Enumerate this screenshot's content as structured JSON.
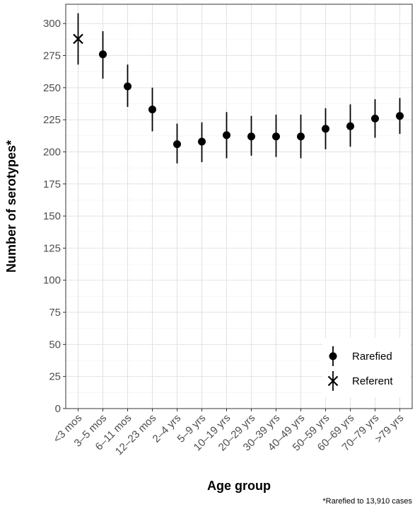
{
  "chart_data": {
    "type": "scatter",
    "title": "",
    "xlabel": "Age group",
    "ylabel": "Number of serotypes*",
    "ylim": [
      0,
      315
    ],
    "yticks": [
      0,
      25,
      50,
      75,
      100,
      125,
      150,
      175,
      200,
      225,
      250,
      275,
      300
    ],
    "categories": [
      "<3 mos",
      "3–5 mos",
      "6–11 mos",
      "12–23 mos",
      "2–4 yrs",
      "5–9 yrs",
      "10–19 yrs",
      "20–29 yrs",
      "30–39 yrs",
      "40–49 yrs",
      "50–59 yrs",
      "60–69 yrs",
      "70–79 yrs",
      ">79 yrs"
    ],
    "series": [
      {
        "name": "Rarefied",
        "marker": "circle",
        "values": [
          null,
          276,
          251,
          233,
          206,
          208,
          213,
          212,
          212,
          212,
          218,
          220,
          226,
          228
        ],
        "lower": [
          null,
          257,
          235,
          216,
          191,
          192,
          195,
          197,
          196,
          195,
          202,
          204,
          211,
          214
        ],
        "upper": [
          null,
          294,
          268,
          250,
          222,
          223,
          231,
          228,
          229,
          229,
          234,
          237,
          241,
          242
        ]
      },
      {
        "name": "Referent",
        "marker": "x",
        "values": [
          288,
          null,
          null,
          null,
          null,
          null,
          null,
          null,
          null,
          null,
          null,
          null,
          null,
          null
        ],
        "lower": [
          268,
          null,
          null,
          null,
          null,
          null,
          null,
          null,
          null,
          null,
          null,
          null,
          null,
          null
        ],
        "upper": [
          308,
          null,
          null,
          null,
          null,
          null,
          null,
          null,
          null,
          null,
          null,
          null,
          null,
          null
        ]
      }
    ],
    "grid": true,
    "legend": "bottom-right",
    "footnote": "*Rarefied to 13,910 cases"
  }
}
